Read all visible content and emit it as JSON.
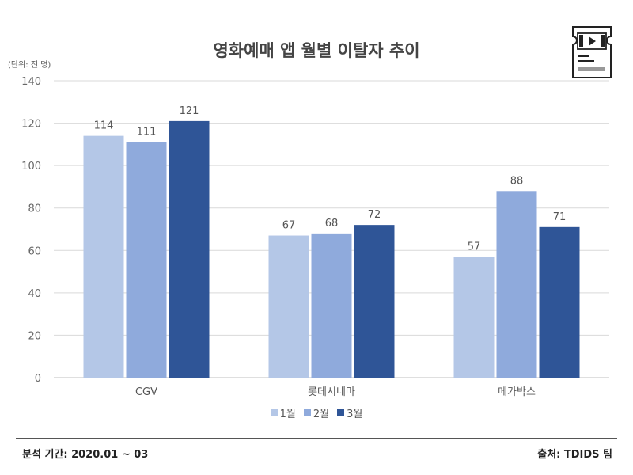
{
  "chart_data": {
    "type": "bar",
    "title": "영화예매 앱 월별 이탈자 추이",
    "unit_label": "(단위: 전 명)",
    "categories": [
      "CGV",
      "롯데시네마",
      "메가박스"
    ],
    "series": [
      {
        "name": "1월",
        "color": "#b4c7e7",
        "values": [
          114,
          67,
          57
        ]
      },
      {
        "name": "2월",
        "color": "#8faadc",
        "values": [
          111,
          68,
          88
        ]
      },
      {
        "name": "3월",
        "color": "#2f5597",
        "values": [
          121,
          72,
          71
        ]
      }
    ],
    "ylim": [
      0,
      140
    ],
    "yticks": [
      0,
      20,
      40,
      60,
      80,
      100,
      120,
      140
    ],
    "grid": true,
    "legend_position": "bottom"
  },
  "footer": {
    "period": "분석 기간: 2020.01 ~ 03",
    "source": "출처: TDIDS 팀"
  },
  "icon": "movie-ticket-icon"
}
